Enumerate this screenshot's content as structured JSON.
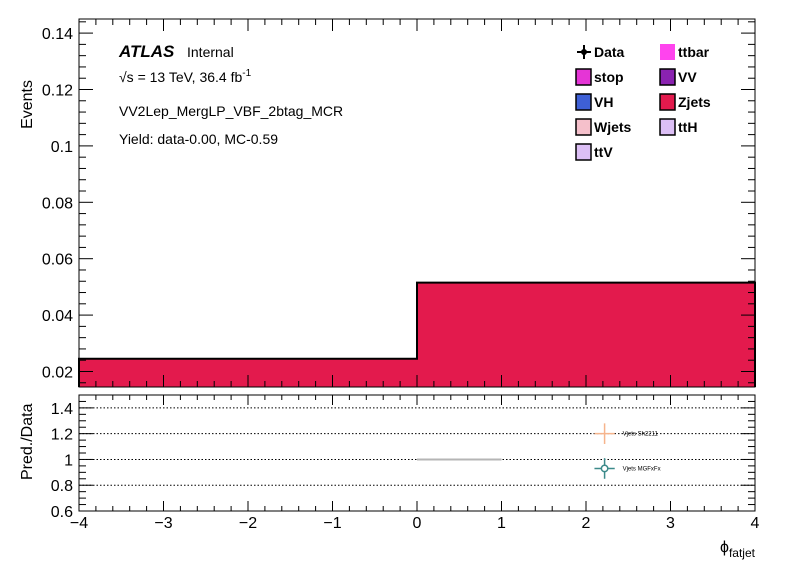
{
  "atlas": {
    "brand": "ATLAS",
    "status": "Internal",
    "energy_line": "√s = 13 TeV, 36.4 fb",
    "energy_sup": "-1",
    "region": "VV2Lep_MergLP_VBF_2btag_MCR",
    "yield": "Yield: data-0.00, MC-0.59"
  },
  "legend": {
    "entries": [
      {
        "label": "Data",
        "color": "#000000",
        "kind": "marker"
      },
      {
        "label": "ttbar",
        "color": "#ff44ee",
        "kind": "box"
      },
      {
        "label": "stop",
        "color": "#e535d6",
        "kind": "box"
      },
      {
        "label": "VV",
        "color": "#8a22b0",
        "kind": "box"
      },
      {
        "label": "VH",
        "color": "#3e60d6",
        "kind": "box"
      },
      {
        "label": "Zjets",
        "color": "#e31a4d",
        "kind": "box"
      },
      {
        "label": "Wjets",
        "color": "#f5c0cb",
        "kind": "box"
      },
      {
        "label": "ttH",
        "color": "#dcbff5",
        "kind": "box"
      },
      {
        "label": "ttV",
        "color": "#dcbff5",
        "kind": "box"
      }
    ]
  },
  "chart_data": [
    {
      "type": "bar",
      "title": "",
      "ylabel": "Events",
      "xlim": [
        -4,
        4
      ],
      "ylim": [
        0.0145,
        0.145
      ],
      "yticks": [
        0.02,
        0.04,
        0.06,
        0.08,
        0.1,
        0.12,
        0.14
      ],
      "ytick_labels": [
        "0.02",
        "0.04",
        "0.06",
        "0.08",
        "0.1",
        "0.12",
        "0.14"
      ],
      "bins": [
        {
          "low": -4,
          "high": 0,
          "value": 0.0245
        },
        {
          "low": 0,
          "high": 4,
          "value": 0.0515
        }
      ],
      "series": [
        {
          "name": "Zjets",
          "color": "#e31a4d"
        }
      ]
    },
    {
      "type": "scatter",
      "ylabel": "Pred./Data",
      "xlabel": "ϕ",
      "xlabel_sub": "fatjet",
      "xlim": [
        -4,
        4
      ],
      "ylim": [
        0.6,
        1.5
      ],
      "xticks": [
        -4,
        -3,
        -2,
        -1,
        0,
        1,
        2,
        3,
        4
      ],
      "xtick_labels": [
        "−4",
        "−3",
        "−2",
        "−1",
        "0",
        "1",
        "2",
        "3",
        "4"
      ],
      "yticks": [
        0.6,
        0.8,
        1.0,
        1.2,
        1.4
      ],
      "ytick_labels": [
        "0.6",
        "0.8",
        "1",
        "1.2",
        "1.4"
      ],
      "grid_lines": [
        0.8,
        1.0,
        1.2,
        1.4
      ],
      "reference_segment": {
        "x0": 0,
        "x1": 1,
        "y": 1.0
      },
      "series": [
        {
          "name": "Vjets Sh2211",
          "color": "#f6b48c",
          "marker": "cross",
          "x": 2.22,
          "y": 1.2,
          "yerr": 0.08,
          "xerr": 0.12
        },
        {
          "name": "Vjets MGFxFx",
          "color": "#3c8a8a",
          "marker": "circle",
          "x": 2.22,
          "y": 0.93,
          "yerr": 0.08,
          "xerr": 0.12
        }
      ]
    }
  ]
}
